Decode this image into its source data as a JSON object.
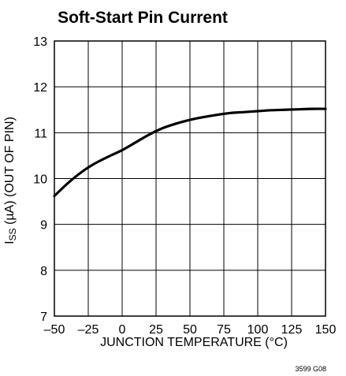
{
  "chart_data": {
    "type": "line",
    "title": "Soft-Start Pin Current",
    "xlabel": "JUNCTION TEMPERATURE (°C)",
    "ylabel": "I_SS (µA) (OUT OF PIN)",
    "ylabel_parts": {
      "main": "I",
      "sub": "SS",
      "rest": " (µA) (OUT OF PIN)"
    },
    "xlim": [
      -50,
      150
    ],
    "ylim": [
      7,
      13
    ],
    "x_ticks": [
      -50,
      -25,
      0,
      25,
      50,
      75,
      100,
      125,
      150
    ],
    "x_tick_labels": [
      "–50",
      "–25",
      "0",
      "25",
      "50",
      "75",
      "100",
      "125",
      "150"
    ],
    "y_ticks": [
      7,
      8,
      9,
      10,
      11,
      12,
      13
    ],
    "y_tick_labels": [
      "7",
      "8",
      "9",
      "10",
      "11",
      "12",
      "13"
    ],
    "grid": true,
    "series": [
      {
        "color": "#000000",
        "x": [
          -50,
          -40,
          -30,
          -20,
          -10,
          0,
          10,
          20,
          30,
          40,
          50,
          60,
          70,
          80,
          90,
          100,
          110,
          120,
          130,
          140,
          150
        ],
        "y": [
          9.62,
          9.9,
          10.14,
          10.33,
          10.48,
          10.62,
          10.79,
          10.96,
          11.1,
          11.2,
          11.28,
          11.34,
          11.39,
          11.43,
          11.45,
          11.47,
          11.49,
          11.5,
          11.51,
          11.52,
          11.52
        ]
      }
    ]
  },
  "figure_code": "3599 G08"
}
